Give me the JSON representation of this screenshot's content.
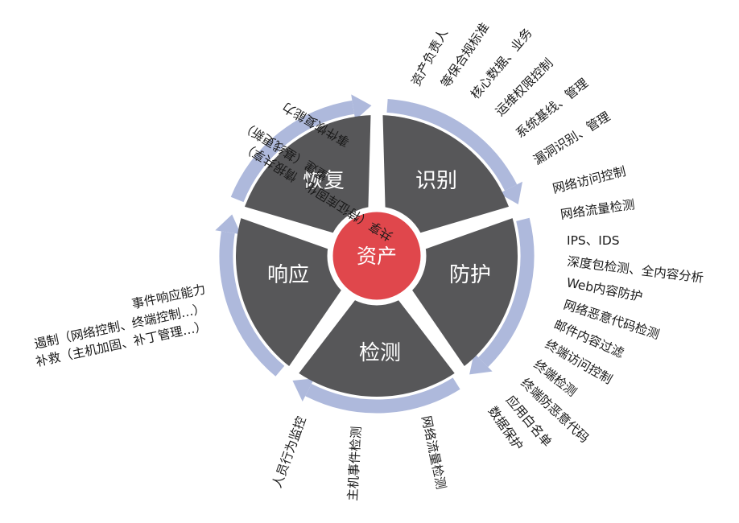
{
  "core": {
    "label": "资产"
  },
  "colors": {
    "segment": "#575759",
    "core": "#e0474c",
    "ring": "#aeb9dc",
    "gap": "#ffffff",
    "text": "#1a1a1a"
  },
  "segments": [
    {
      "label": "识别"
    },
    {
      "label": "防护"
    },
    {
      "label": "检测"
    },
    {
      "label": "响应"
    },
    {
      "label": "恢复"
    }
  ],
  "identify_items": [
    {
      "text": "资产负责人"
    },
    {
      "text": "等保合规标准"
    },
    {
      "text": "核心数据、业务"
    },
    {
      "text": "运维权限控制"
    },
    {
      "text": "系统基线、管理"
    },
    {
      "text": "漏洞识别、管理"
    }
  ],
  "protect_items": [
    {
      "text": "网络访问控制"
    },
    {
      "text": "网络流量检测"
    },
    {
      "text": "IPS、IDS"
    },
    {
      "text": "深度包检测、全内容分析"
    },
    {
      "text": "Web内容防护"
    },
    {
      "text": "网络恶意代码检测"
    },
    {
      "text": "邮件内容过滤"
    },
    {
      "text": "终端访问控制"
    },
    {
      "text": "终端检测"
    },
    {
      "text": "终端防恶意代码"
    },
    {
      "text": "应用白名单"
    },
    {
      "text": "数据保护"
    }
  ],
  "detect_items": [
    {
      "text": "人员行为监控"
    },
    {
      "text": "主机事件检测"
    },
    {
      "text": "网络流量检测"
    }
  ],
  "respond_items": [
    {
      "text": "事件响应能力"
    },
    {
      "text": "遏制（网络控制、终端控制…）"
    },
    {
      "text": "补救（主机加固、补丁管理…）"
    }
  ],
  "recover_items": [
    {
      "text": "事件恢复能力"
    },
    {
      "text": "重建（基线更新）"
    },
    {
      "text": "共享（特征库固化、情报共享）"
    }
  ]
}
